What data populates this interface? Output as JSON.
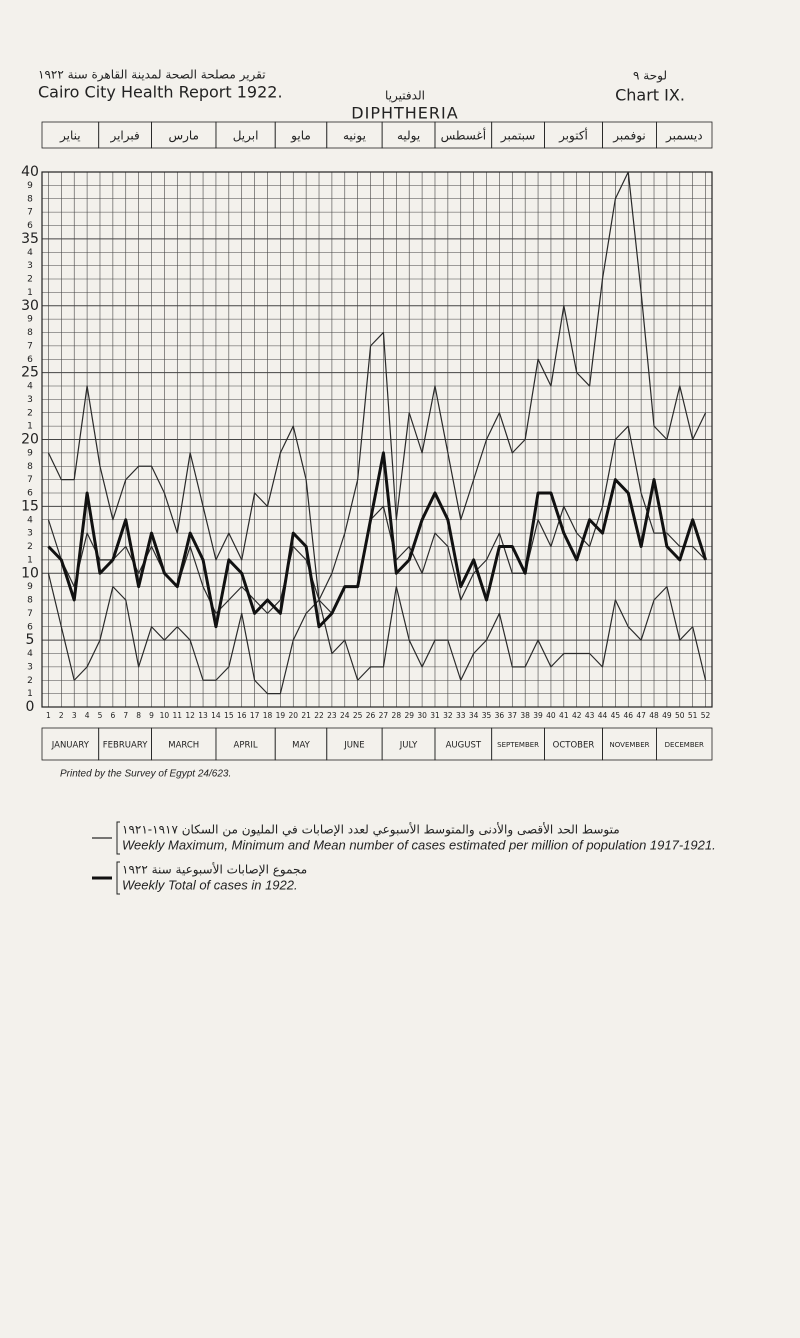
{
  "header": {
    "title_ar": "تقرير مصلحة الصحة لمدينة القاهرة سنة ١٩٢٢",
    "title": "Cairo City Health Report 1922.",
    "chart_ar": "لوحة ٩",
    "chart": "Chart IX."
  },
  "chart_data": {
    "type": "line",
    "title_ar": "الدفتيريا",
    "title": "DIPHTHERIA",
    "months": [
      "JANUARY",
      "FEBRUARY",
      "MARCH",
      "APRIL",
      "MAY",
      "JUNE",
      "JULY",
      "AUGUST",
      "SEPTEMBER",
      "OCTOBER",
      "NOVEMBER",
      "DECEMBER"
    ],
    "months_ar": [
      "يناير",
      "فبراير",
      "مارس",
      "ابريل",
      "مايو",
      "يونيه",
      "يوليه",
      "أغسطس",
      "سبتمبر",
      "أكتوبر",
      "نوفمبر",
      "ديسمبر"
    ],
    "x": [
      1,
      2,
      3,
      4,
      5,
      6,
      7,
      8,
      9,
      10,
      11,
      12,
      13,
      14,
      15,
      16,
      17,
      18,
      19,
      20,
      21,
      22,
      23,
      24,
      25,
      26,
      27,
      28,
      29,
      30,
      31,
      32,
      33,
      34,
      35,
      36,
      37,
      38,
      39,
      40,
      41,
      42,
      43,
      44,
      45,
      46,
      47,
      48,
      49,
      50,
      51,
      52
    ],
    "xlim": [
      0.5,
      52.5
    ],
    "xticks": [
      1,
      2,
      3,
      4,
      5,
      6,
      7,
      8,
      9,
      10,
      11,
      12,
      13,
      14,
      15,
      16,
      17,
      18,
      19,
      20,
      21,
      22,
      23,
      24,
      25,
      26,
      27,
      28,
      29,
      30,
      31,
      32,
      33,
      34,
      35,
      36,
      37,
      38,
      39,
      40,
      41,
      42,
      43,
      44,
      45,
      46,
      47,
      48,
      49,
      50,
      51,
      52
    ],
    "ylim": [
      0,
      40
    ],
    "yticks": [
      0,
      1,
      2,
      3,
      4,
      5,
      6,
      7,
      8,
      9,
      10,
      {
        "value": 11,
        "label": "1"
      },
      {
        "value": 12,
        "label": "2"
      },
      {
        "value": 13,
        "label": "3"
      },
      {
        "value": 14,
        "label": "4"
      },
      15,
      {
        "value": 16,
        "label": "6"
      },
      {
        "value": 17,
        "label": "7"
      },
      {
        "value": 18,
        "label": "8"
      },
      {
        "value": 19,
        "label": "9"
      },
      20,
      {
        "value": 21,
        "label": "1"
      },
      {
        "value": 22,
        "label": "2"
      },
      {
        "value": 23,
        "label": "3"
      },
      {
        "value": 24,
        "label": "4"
      },
      25,
      {
        "value": 26,
        "label": "6"
      },
      {
        "value": 27,
        "label": "7"
      },
      {
        "value": 28,
        "label": "8"
      },
      {
        "value": 29,
        "label": "9"
      },
      30,
      {
        "value": 31,
        "label": "1"
      },
      {
        "value": 32,
        "label": "2"
      },
      {
        "value": 33,
        "label": "3"
      },
      {
        "value": 34,
        "label": "4"
      },
      35,
      {
        "value": 36,
        "label": "6"
      },
      {
        "value": 37,
        "label": "7"
      },
      {
        "value": 38,
        "label": "8"
      },
      {
        "value": 39,
        "label": "9"
      },
      40
    ],
    "grid": true,
    "series": [
      {
        "color": "#2a2a2a",
        "width": 1.2,
        "values": [
          19,
          17,
          17,
          24,
          18,
          14,
          17,
          18,
          18,
          16,
          13,
          19,
          15,
          11,
          13,
          11,
          16,
          15,
          19,
          21,
          17,
          8,
          10,
          13,
          17,
          27,
          28,
          14,
          22,
          19,
          24,
          19,
          14,
          17,
          20,
          22,
          19,
          20,
          26,
          24,
          30,
          25,
          24,
          32,
          38,
          40,
          31,
          21,
          20,
          24,
          20,
          22
        ]
      },
      {
        "color": "#2a2a2a",
        "width": 1.2,
        "values": [
          14,
          11,
          9,
          13,
          11,
          11,
          12,
          10,
          12,
          10,
          9,
          12,
          9,
          7,
          8,
          9,
          8,
          7,
          8,
          12,
          11,
          8,
          7,
          9,
          9,
          14,
          15,
          11,
          12,
          10,
          13,
          12,
          8,
          10,
          11,
          13,
          10,
          10,
          14,
          12,
          15,
          13,
          12,
          15,
          20,
          21,
          16,
          13,
          13,
          12,
          12,
          11
        ]
      },
      {
        "color": "#2a2a2a",
        "width": 1.2,
        "values": [
          10,
          6,
          2,
          3,
          5,
          9,
          8,
          3,
          6,
          5,
          6,
          5,
          2,
          2,
          3,
          7,
          2,
          1,
          1,
          5,
          7,
          8,
          4,
          5,
          2,
          3,
          3,
          9,
          5,
          3,
          5,
          5,
          2,
          4,
          5,
          7,
          3,
          3,
          5,
          3,
          4,
          4,
          4,
          3,
          8,
          6,
          5,
          8,
          9,
          5,
          6,
          2
        ]
      },
      {
        "color": "#111111",
        "width": 3,
        "values": [
          12,
          11,
          8,
          16,
          10,
          11,
          14,
          9,
          13,
          10,
          9,
          13,
          11,
          6,
          11,
          10,
          7,
          8,
          7,
          13,
          12,
          6,
          7,
          9,
          9,
          14,
          19,
          10,
          11,
          14,
          16,
          14,
          9,
          11,
          8,
          12,
          12,
          10,
          16,
          16,
          13,
          11,
          14,
          13,
          17,
          16,
          12,
          17,
          12,
          11,
          14,
          11
        ]
      }
    ],
    "note": "Printed by the Survey of Egypt 24/623.",
    "legend": [
      {
        "text_ar": "متوسط الحد الأقصى والأدنى والمتوسط الأسبوعي لعدد الإصابات في المليون من السكان ١٩١٧-١٩٢١",
        "text": "Weekly Maximum, Minimum and Mean number of cases estimated per million of population 1917-1921.",
        "series": 0
      },
      {
        "text_ar": "مجموع الإصابات الأسبوعية سنة ١٩٢٢",
        "text": "Weekly Total of cases in 1922.",
        "series": 3
      }
    ]
  }
}
